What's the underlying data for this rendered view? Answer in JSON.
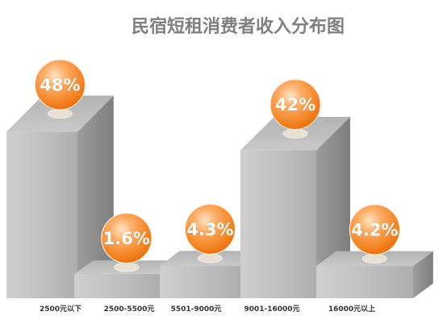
{
  "chart_data": {
    "type": "bar",
    "variant": "3d",
    "title": "民宿短租消费者收入分布图",
    "categories": [
      "2500元以下",
      "2500-5500元",
      "5501-9000元",
      "9001-16000元",
      "16000元以上"
    ],
    "values": [
      48,
      1.6,
      4.3,
      42,
      4.2
    ],
    "data_labels": [
      "48%",
      "1.6%",
      "4.3%",
      "42%",
      "4.2%"
    ],
    "grid": false,
    "legend": "none",
    "colors": {
      "bar": "#bdbdbd",
      "label_ball": "#f0801f",
      "title": "#808080",
      "category_text": "#333333"
    }
  }
}
